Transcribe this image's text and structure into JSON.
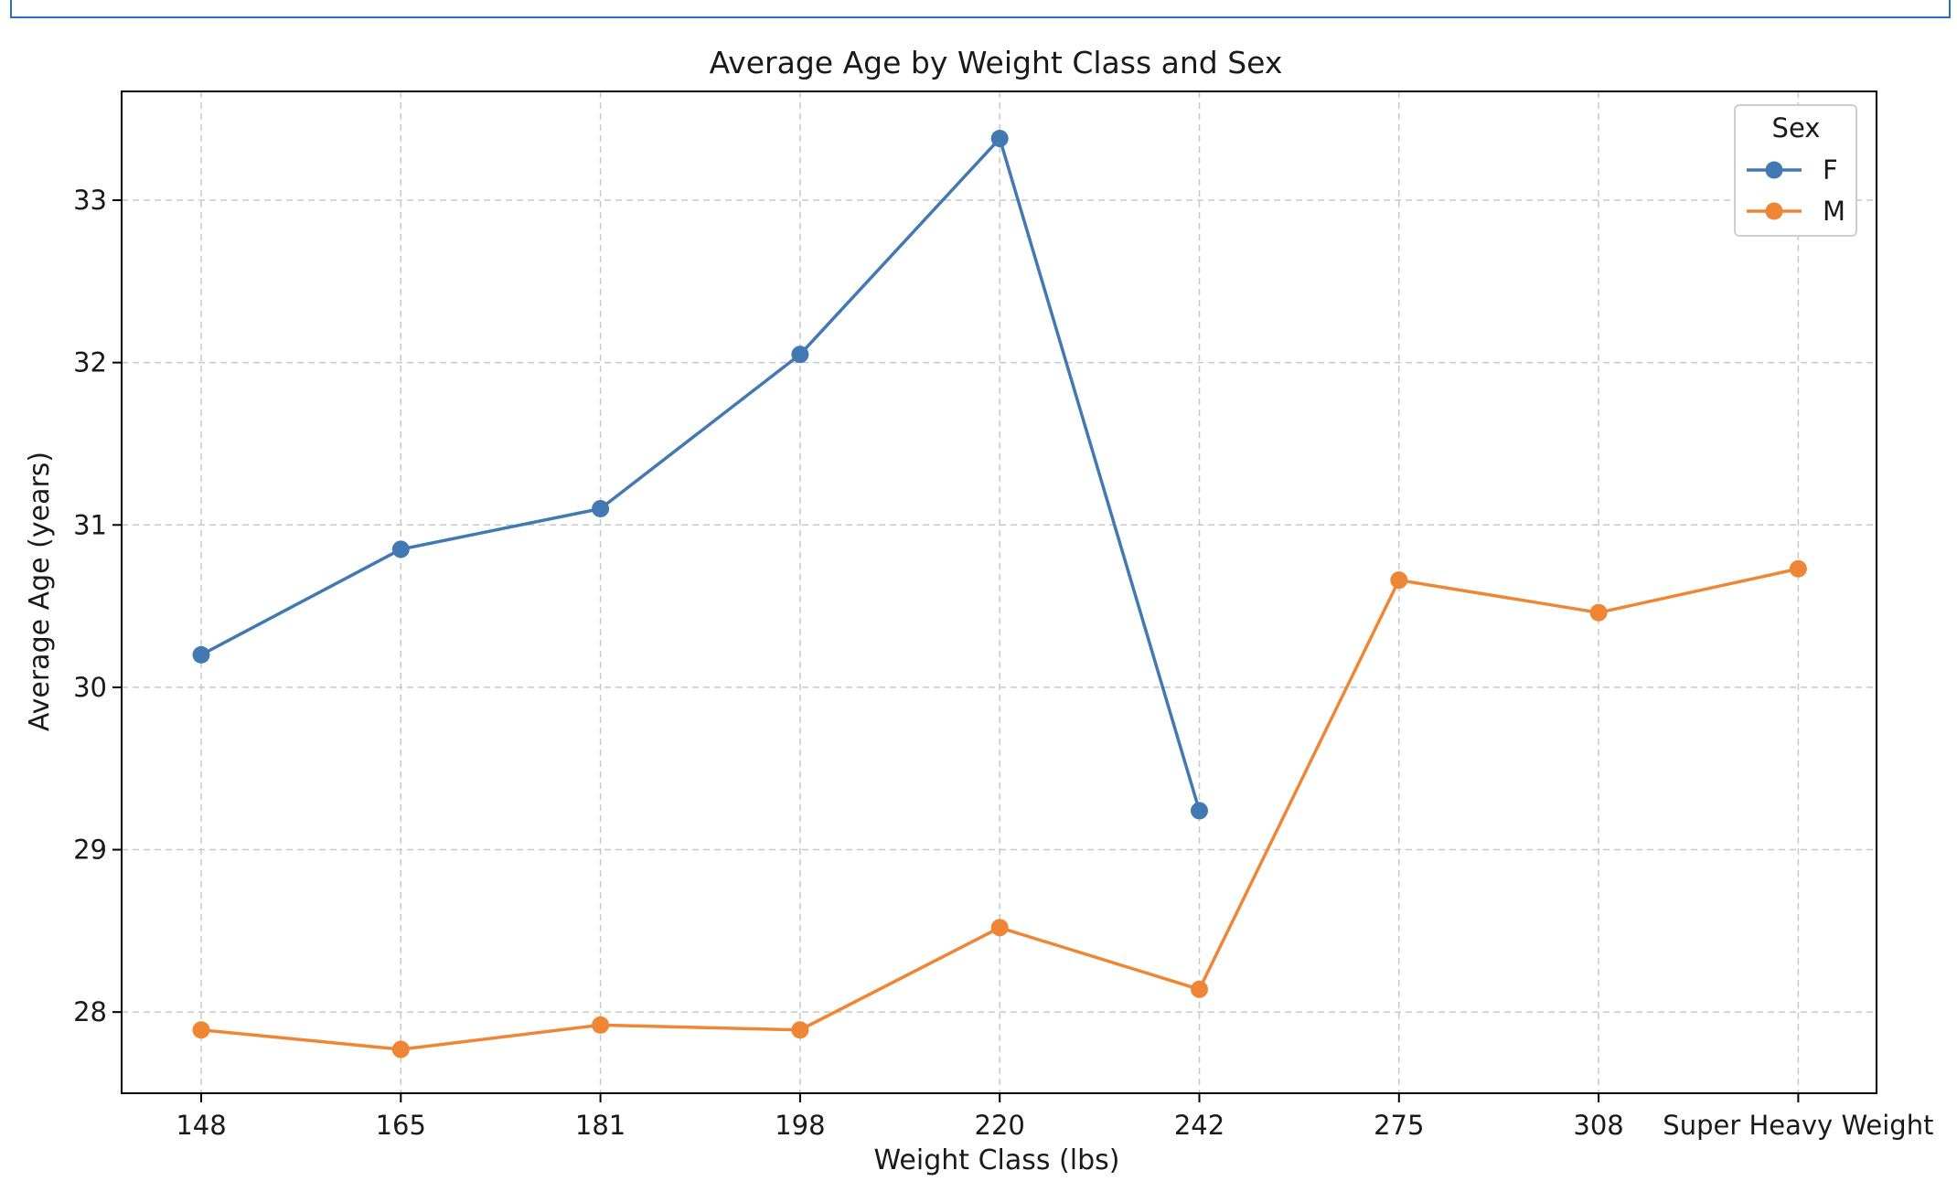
{
  "chart_data": {
    "type": "line",
    "title": "Average Age by Weight Class and Sex",
    "xlabel": "Weight Class (lbs)",
    "ylabel": "Average Age (years)",
    "categories": [
      "148",
      "165",
      "181",
      "198",
      "220",
      "242",
      "275",
      "308",
      "Super Heavy Weight"
    ],
    "ylim": [
      27.5,
      33.67
    ],
    "yticks": [
      28,
      29,
      30,
      31,
      32,
      33
    ],
    "grid": true,
    "legend": {
      "title": "Sex",
      "placement": "top-right"
    },
    "series": [
      {
        "name": "F",
        "color": "#4379b2",
        "values": [
          30.2,
          30.85,
          31.1,
          32.05,
          33.38,
          29.24,
          null,
          null,
          null
        ]
      },
      {
        "name": "M",
        "color": "#ef8636",
        "values": [
          27.89,
          27.77,
          27.92,
          27.89,
          28.52,
          28.14,
          30.66,
          30.46,
          30.73
        ]
      }
    ]
  }
}
